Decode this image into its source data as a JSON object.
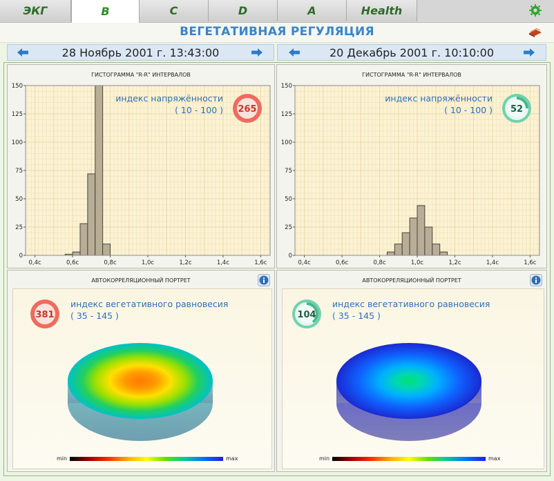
{
  "tabs": [
    {
      "label": "ЭКГ",
      "active": false
    },
    {
      "label": "B",
      "active": true
    },
    {
      "label": "C",
      "active": false
    },
    {
      "label": "D",
      "active": false
    },
    {
      "label": "A",
      "active": false
    },
    {
      "label": "Health",
      "active": false
    }
  ],
  "header": {
    "title": "ВЕГЕТАТИВНАЯ РЕГУЛЯЦИЯ"
  },
  "left": {
    "date": "28 Ноябрь 2001 г. 13:43:00",
    "histogram_title": "ГИСТОГРАММА \"R-R\" ИНТЕРВАЛОВ",
    "tension_label": "индекс напряжённости",
    "tension_range": "( 10 - 100 )",
    "tension_value": "265",
    "portrait_title": "АВТОКОРРЕЛЯЦИОННЫЙ ПОРТРЕТ",
    "balance_label": "индекс вегетативного равновесия",
    "balance_range": "( 35 - 145 )",
    "balance_value": "381",
    "scale_min": "min",
    "scale_max": "max"
  },
  "right": {
    "date": "20 Декабрь 2001 г. 10:10:00",
    "histogram_title": "ГИСТОГРАММА \"R-R\" ИНТЕРВАЛОВ",
    "tension_label": "индекс напряжённости",
    "tension_range": "( 10 - 100 )",
    "tension_value": "52",
    "portrait_title": "АВТОКОРРЕЛЯЦИОННЫЙ ПОРТРЕТ",
    "balance_label": "индекс вегетативного равновесия",
    "balance_range": "( 35 - 145 )",
    "balance_value": "104",
    "scale_min": "min",
    "scale_max": "max"
  },
  "colors": {
    "badge_high": "#ef6b5e",
    "badge_normal": "#4fc19a",
    "title_blue": "#3a84c9",
    "tab_green": "#2f8a2a"
  },
  "chart_data": [
    {
      "type": "bar",
      "title": "ГИСТОГРАММА \"R-R\" ИНТЕРВАЛОВ",
      "xlabel": "",
      "ylabel": "",
      "ylim": [
        0,
        150
      ],
      "xlim": [
        0.35,
        1.65
      ],
      "yticks": [
        "0",
        "25",
        "50",
        "75",
        "100",
        "125",
        "150"
      ],
      "xticks": [
        "0,4c",
        "0,6c",
        "0,8c",
        "1,0c",
        "1,2c",
        "1,4c",
        "1,6c"
      ],
      "bin_width": 0.04,
      "bins_start": [
        0.56,
        0.6,
        0.64,
        0.68,
        0.72,
        0.76
      ],
      "values": [
        1,
        3,
        28,
        72,
        150,
        10
      ]
    },
    {
      "type": "bar",
      "title": "ГИСТОГРАММА \"R-R\" ИНТЕРВАЛОВ",
      "xlabel": "",
      "ylabel": "",
      "ylim": [
        0,
        150
      ],
      "xlim": [
        0.35,
        1.65
      ],
      "yticks": [
        "0",
        "25",
        "50",
        "75",
        "100",
        "125",
        "150"
      ],
      "xticks": [
        "0,4c",
        "0,6c",
        "0,8c",
        "1,0c",
        "1,2c",
        "1,4c",
        "1,6c"
      ],
      "bin_width": 0.04,
      "bins_start": [
        0.84,
        0.88,
        0.92,
        0.96,
        1.0,
        1.04,
        1.08,
        1.12
      ],
      "values": [
        3,
        10,
        20,
        33,
        44,
        25,
        10,
        3
      ]
    }
  ]
}
